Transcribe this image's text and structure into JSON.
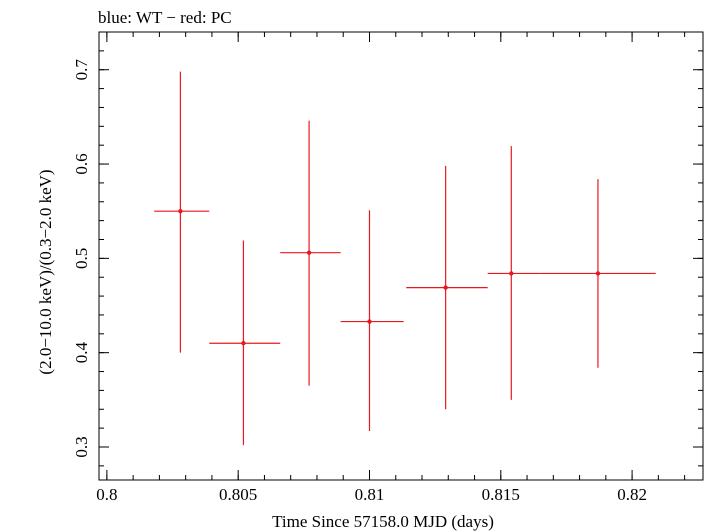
{
  "chart_data": {
    "type": "scatter",
    "title": "blue: WT − red: PC",
    "xlabel": "Time Since 57158.0 MJD (days)",
    "ylabel": "(2.0−10.0 keV)/(0.3−2.0 keV)",
    "xlim": [
      0.7997,
      0.8227
    ],
    "ylim": [
      0.265,
      0.74
    ],
    "x_major_ticks": [
      0.8,
      0.805,
      0.81,
      0.815,
      0.82
    ],
    "x_tick_labels": [
      "0.8",
      "0.805",
      "0.81",
      "0.815",
      "0.82"
    ],
    "x_minor_step": 0.001,
    "y_major_ticks": [
      0.3,
      0.4,
      0.5,
      0.6,
      0.7
    ],
    "y_tick_labels": [
      "0.3",
      "0.4",
      "0.5",
      "0.6",
      "0.7"
    ],
    "y_minor_step": 0.02,
    "grid": false,
    "series": [
      {
        "color": "#e8191e",
        "points": [
          {
            "x": 0.8028,
            "xlo": 0.8018,
            "xhi": 0.8039,
            "y": 0.55,
            "ylo": 0.4,
            "yhi": 0.698
          },
          {
            "x": 0.8052,
            "xlo": 0.8039,
            "xhi": 0.8066,
            "y": 0.41,
            "ylo": 0.302,
            "yhi": 0.519
          },
          {
            "x": 0.8077,
            "xlo": 0.8066,
            "xhi": 0.8089,
            "y": 0.506,
            "ylo": 0.365,
            "yhi": 0.646
          },
          {
            "x": 0.81,
            "xlo": 0.8089,
            "xhi": 0.8113,
            "y": 0.433,
            "ylo": 0.317,
            "yhi": 0.551
          },
          {
            "x": 0.8129,
            "xlo": 0.8114,
            "xhi": 0.8145,
            "y": 0.469,
            "ylo": 0.34,
            "yhi": 0.598
          },
          {
            "x": 0.8154,
            "xlo": 0.8145,
            "xhi": 0.8165,
            "y": 0.484,
            "ylo": 0.35,
            "yhi": 0.619
          },
          {
            "x": 0.8187,
            "xlo": 0.8165,
            "xhi": 0.8209,
            "y": 0.484,
            "ylo": 0.384,
            "yhi": 0.584
          }
        ]
      }
    ]
  }
}
